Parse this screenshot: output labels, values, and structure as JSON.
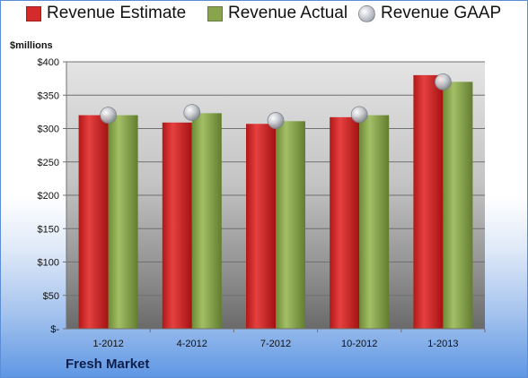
{
  "chart_data": {
    "type": "bar",
    "ylabel": "$millions",
    "ylim": [
      0,
      400
    ],
    "y_ticks": [
      "$-",
      "$50",
      "$100",
      "$150",
      "$200",
      "$250",
      "$300",
      "$350",
      "$400"
    ],
    "categories": [
      "1-2012",
      "4-2012",
      "7-2012",
      "10-2012",
      "1-2013"
    ],
    "series": [
      {
        "name": "Revenue Estimate",
        "kind": "bar",
        "values": [
          320,
          309,
          307,
          317,
          380
        ],
        "color": "#d42a2a"
      },
      {
        "name": "Revenue Actual",
        "kind": "bar",
        "values": [
          320,
          323,
          311,
          320,
          370
        ],
        "color": "#88a54e"
      },
      {
        "name": "Revenue GAAP",
        "kind": "marker",
        "values": [
          320,
          324,
          312,
          321,
          370
        ],
        "color": "#b8bcc4"
      }
    ],
    "grid": true,
    "legend_position": "top"
  },
  "company": "Fresh Market"
}
